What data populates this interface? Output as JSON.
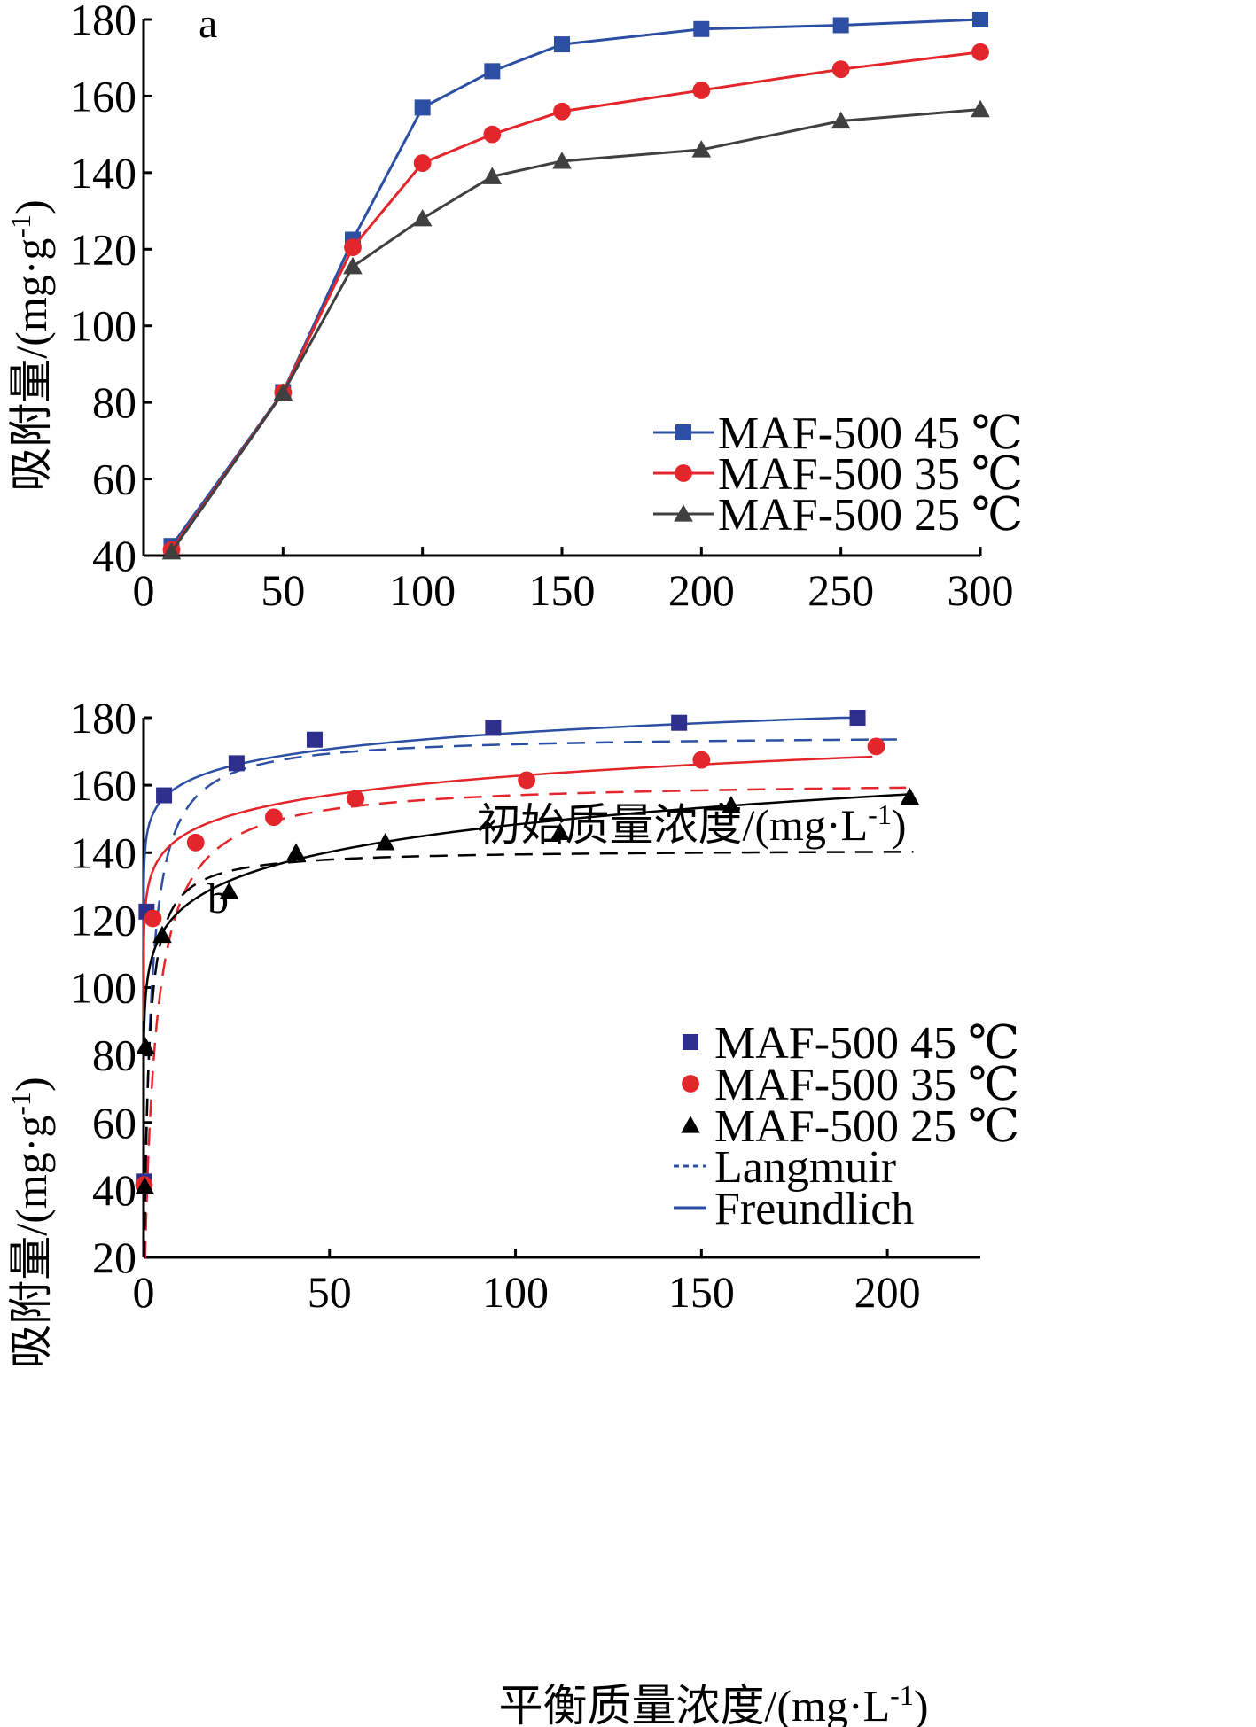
{
  "chart_data": [
    {
      "panel_label": "a",
      "type": "line",
      "xlabel": "初始质量浓度/(mg·L",
      "xlabel_sup": "-1",
      "xlabel_end": ")",
      "ylabel": "吸附量/(mg·g",
      "ylabel_sup": "-1",
      "ylabel_end": ")",
      "xlim": [
        0,
        300
      ],
      "ylim": [
        40,
        180
      ],
      "xticks": [
        "0",
        "50",
        "100",
        "150",
        "200",
        "250",
        "300"
      ],
      "yticks": [
        "40",
        "60",
        "80",
        "100",
        "120",
        "140",
        "160",
        "180"
      ],
      "legend_position": "lower-right",
      "series": [
        {
          "name": "MAF-500 45 ℃",
          "color": "#2c4fa3",
          "marker": "square",
          "x": [
            10,
            50,
            75,
            100,
            125,
            150,
            200,
            250,
            300
          ],
          "y": [
            42.5,
            82.7,
            122.5,
            157,
            166.5,
            173.5,
            177.5,
            178.5,
            180
          ]
        },
        {
          "name": "MAF-500 35 ℃",
          "color": "#e3262b",
          "marker": "circle",
          "x": [
            10,
            50,
            75,
            100,
            125,
            150,
            200,
            250,
            300
          ],
          "y": [
            41.5,
            82.6,
            120.5,
            142.5,
            150,
            156,
            161.5,
            167,
            171.5
          ]
        },
        {
          "name": "MAF-500 25 ℃",
          "color": "#404040",
          "marker": "triangle",
          "x": [
            10,
            50,
            75,
            100,
            125,
            150,
            200,
            250,
            300
          ],
          "y": [
            41,
            82.5,
            115.5,
            128,
            139,
            143,
            146,
            153.5,
            156.5
          ]
        }
      ]
    },
    {
      "panel_label": "b",
      "type": "scatter",
      "xlabel": "平衡质量浓度/(mg·L",
      "xlabel_sup": "-1",
      "xlabel_end": ")",
      "ylabel": "吸附量/(mg·g",
      "ylabel_sup": "-1",
      "ylabel_end": ")",
      "xlim": [
        0,
        225
      ],
      "ylim": [
        20,
        180
      ],
      "xticks": [
        "0",
        "50",
        "100",
        "150",
        "200"
      ],
      "yticks": [
        "20",
        "40",
        "60",
        "80",
        "100",
        "120",
        "140",
        "160",
        "180"
      ],
      "legend_position": "lower-right",
      "series": [
        {
          "name": "MAF-500 45 ℃",
          "color": "#2e2f8c",
          "marker": "square",
          "x": [
            0.05,
            0.8,
            5.5,
            25,
            46,
            94,
            144,
            192
          ],
          "y": [
            42.5,
            122.5,
            157,
            166.5,
            173.5,
            177,
            178.5,
            180
          ]
        },
        {
          "name": "MAF-500 35 ℃",
          "color": "#e3262b",
          "marker": "circle",
          "x": [
            0.1,
            2.5,
            14,
            35,
            57,
            103,
            150,
            197
          ],
          "y": [
            41.5,
            120.5,
            143,
            150.5,
            156,
            161.5,
            167.5,
            171.5
          ]
        },
        {
          "name": "MAF-500 25 ℃",
          "color": "#000000",
          "marker": "triangle",
          "x": [
            0.3,
            0.5,
            5,
            23,
            41,
            65,
            112,
            158,
            206
          ],
          "y": [
            41,
            82.5,
            115.5,
            128.5,
            140,
            143,
            146,
            154,
            156.5
          ]
        }
      ],
      "fits": [
        {
          "model": "Langmuir",
          "style": "dashed",
          "color": "#2c4fa3",
          "qmax": 175,
          "KL": 0.6,
          "xmax": 205
        },
        {
          "model": "Langmuir",
          "style": "dashed",
          "color": "#e3262b",
          "qmax": 161.5,
          "KL": 0.35,
          "xmax": 205
        },
        {
          "model": "Langmuir",
          "style": "dashed",
          "color": "#000000",
          "qmax": 141,
          "KL": 0.9,
          "xmax": 207
        },
        {
          "model": "Freundlich",
          "style": "solid",
          "color": "#2c4fa3",
          "KF": 146,
          "n": 25,
          "xmax": 192
        },
        {
          "model": "Freundlich",
          "style": "solid",
          "color": "#e3262b",
          "KF": 128.5,
          "n": 19.5,
          "xmax": 196
        },
        {
          "model": "Freundlich",
          "style": "solid",
          "color": "#000000",
          "KF": 102,
          "n": 12.3,
          "xmax": 207
        }
      ],
      "fit_legend": [
        {
          "label": "Langmuir",
          "style": "dashed",
          "color": "#2c4fa3"
        },
        {
          "label": "Freundlich",
          "style": "solid",
          "color": "#2c4fa3"
        }
      ]
    }
  ]
}
